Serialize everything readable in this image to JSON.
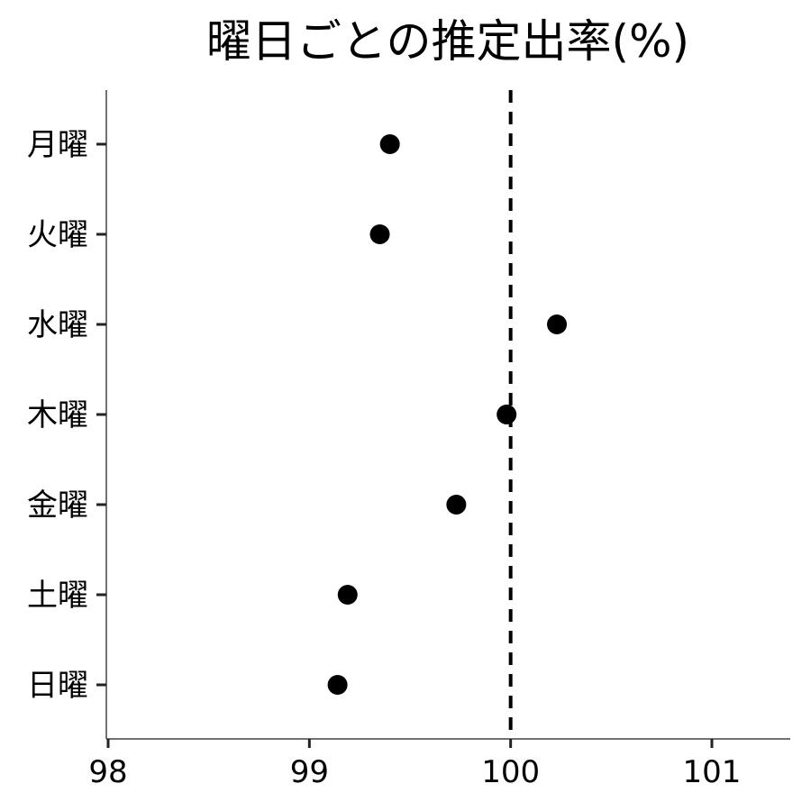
{
  "chart_data": {
    "type": "scatter",
    "title": "曜日ごとの推定出率(%)",
    "xlabel": "",
    "ylabel": "",
    "categories": [
      "月曜",
      "火曜",
      "水曜",
      "木曜",
      "金曜",
      "土曜",
      "日曜"
    ],
    "values": [
      99.4,
      99.35,
      100.23,
      99.98,
      99.73,
      99.19,
      99.14
    ],
    "xlim": [
      98,
      101.4
    ],
    "xticks": [
      98,
      99,
      100,
      101
    ],
    "xtick_labels": [
      "98",
      "99",
      "100",
      "101"
    ],
    "reference_line": {
      "x": 100,
      "style": "dashed",
      "color": "#000000"
    },
    "grid": false,
    "legend": "none",
    "point_color": "#000000"
  }
}
